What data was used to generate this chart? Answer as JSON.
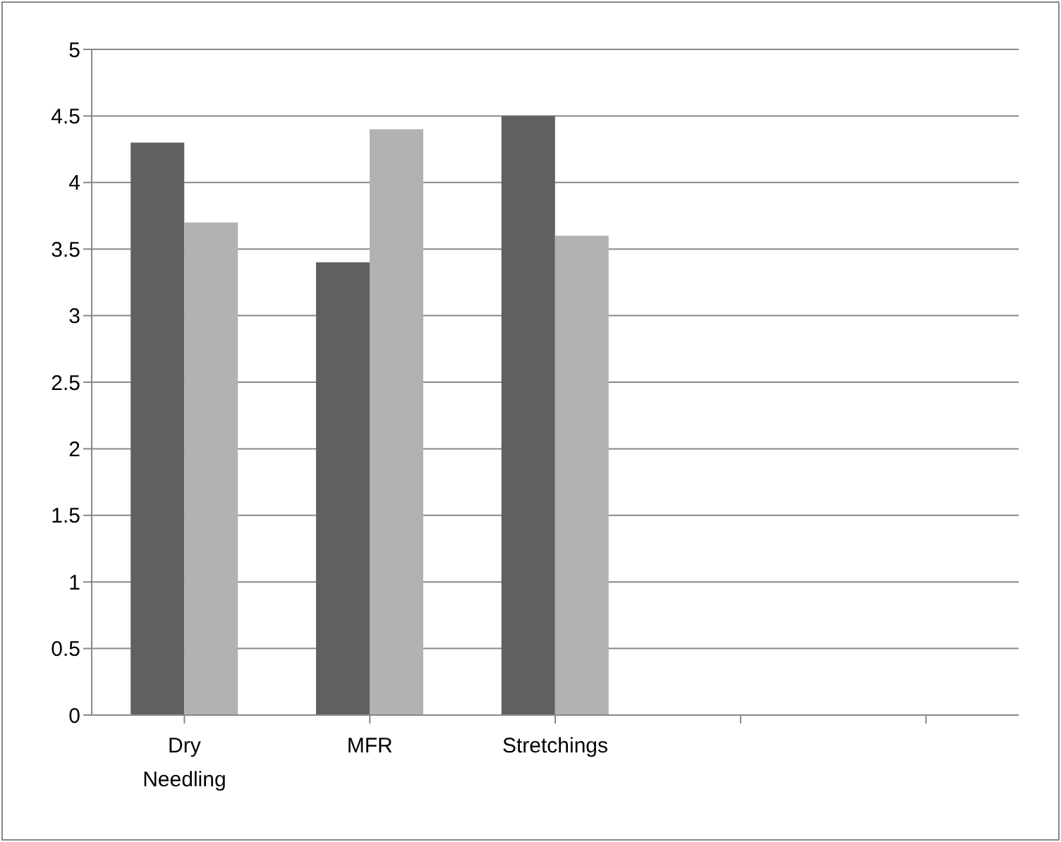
{
  "chart_data": {
    "type": "bar",
    "categories": [
      "Dry Needling",
      "MFR",
      "Stretchings",
      null,
      null
    ],
    "series": [
      {
        "color": "#606060",
        "values": [
          4.3,
          3.4,
          4.5,
          null,
          null
        ]
      },
      {
        "color": "#b2b2b2",
        "values": [
          3.7,
          4.4,
          3.6,
          null,
          null
        ]
      }
    ],
    "ylim": [
      0,
      5
    ],
    "yticks": [
      0,
      0.5,
      1,
      1.5,
      2,
      2.5,
      3,
      3.5,
      4,
      4.5,
      5
    ],
    "grid": "y",
    "legend": false
  }
}
